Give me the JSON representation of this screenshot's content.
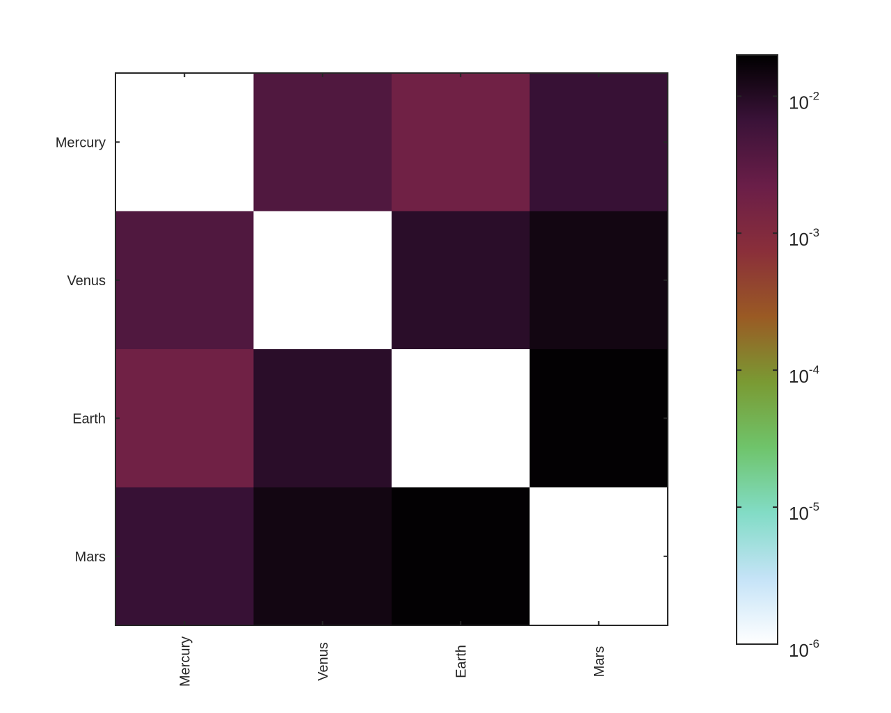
{
  "chart_data": {
    "type": "heatmap",
    "title": "",
    "xlabel": "",
    "ylabel": "",
    "x_categories": [
      "Mercury",
      "Venus",
      "Earth",
      "Mars"
    ],
    "y_categories": [
      "Mercury",
      "Venus",
      "Earth",
      "Mars"
    ],
    "values": [
      [
        1e-06,
        0.004,
        0.0018,
        0.007
      ],
      [
        0.004,
        1e-06,
        0.009,
        0.014
      ],
      [
        0.0018,
        0.009,
        1e-06,
        0.019
      ],
      [
        0.007,
        0.014,
        0.019,
        1e-06
      ]
    ],
    "colorbar": {
      "scale": "log",
      "range": [
        1e-06,
        0.02
      ],
      "ticks": [
        {
          "value": 1e-06,
          "base": "10",
          "exp": "-6"
        },
        {
          "value": 1e-05,
          "base": "10",
          "exp": "-5"
        },
        {
          "value": 0.0001,
          "base": "10",
          "exp": "-4"
        },
        {
          "value": 0.001,
          "base": "10",
          "exp": "-3"
        },
        {
          "value": 0.01,
          "base": "10",
          "exp": "-2"
        }
      ],
      "colormap": [
        "#ffffff",
        "#c5e3f7",
        "#82dcc6",
        "#6fc46b",
        "#7a9a33",
        "#9a5a24",
        "#8a2f3a",
        "#6a1e48",
        "#3a1238",
        "#000000"
      ]
    },
    "grid": false,
    "legend": "none"
  }
}
